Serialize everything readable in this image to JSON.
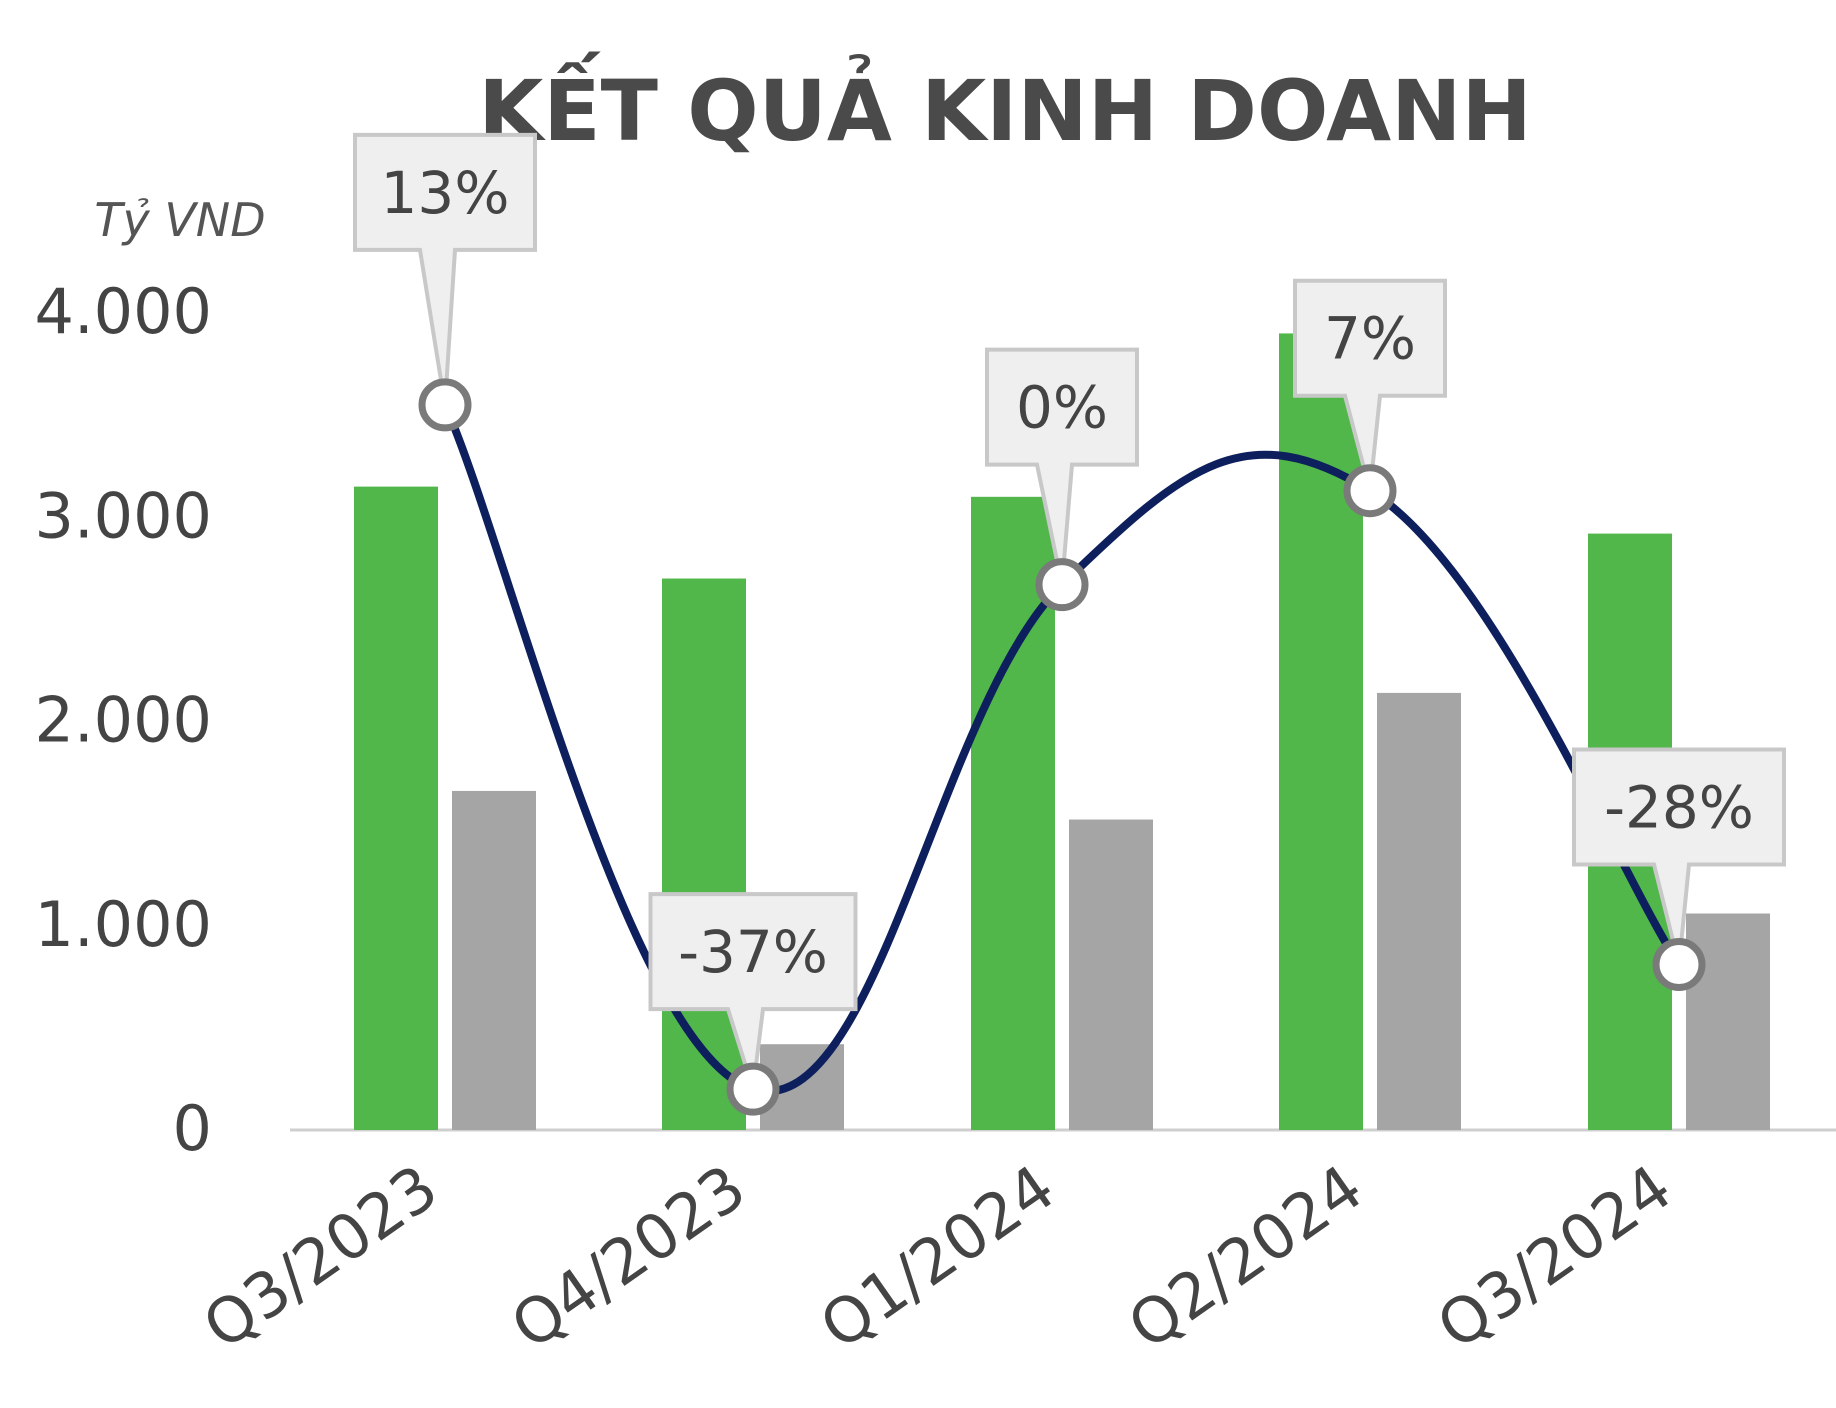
{
  "chart_data": {
    "type": "bar",
    "title": "KẾT QUẢ KINH DOANH",
    "ylabel": "Tỷ VND",
    "ylim": [
      0,
      4000
    ],
    "yticks": [
      "0",
      "1.000",
      "2.000",
      "3.000",
      "4.000"
    ],
    "categories": [
      "Q3/2023",
      "Q4/2023",
      "Q1/2024",
      "Q2/2024",
      "Q3/2024"
    ],
    "series": [
      {
        "type": "bar",
        "values": [
          3150,
          2700,
          3100,
          3900,
          2920
        ],
        "color": "#52b74a"
      },
      {
        "type": "bar",
        "values": [
          1660,
          420,
          1520,
          2140,
          1060
        ],
        "color": "#a5a5a5"
      },
      {
        "type": "line",
        "values": [
          3550,
          200,
          2670,
          3130,
          810
        ],
        "labels": [
          "13%",
          "-37%",
          "0%",
          "7%",
          "-28%"
        ],
        "color": "#0d1f5c"
      }
    ]
  }
}
